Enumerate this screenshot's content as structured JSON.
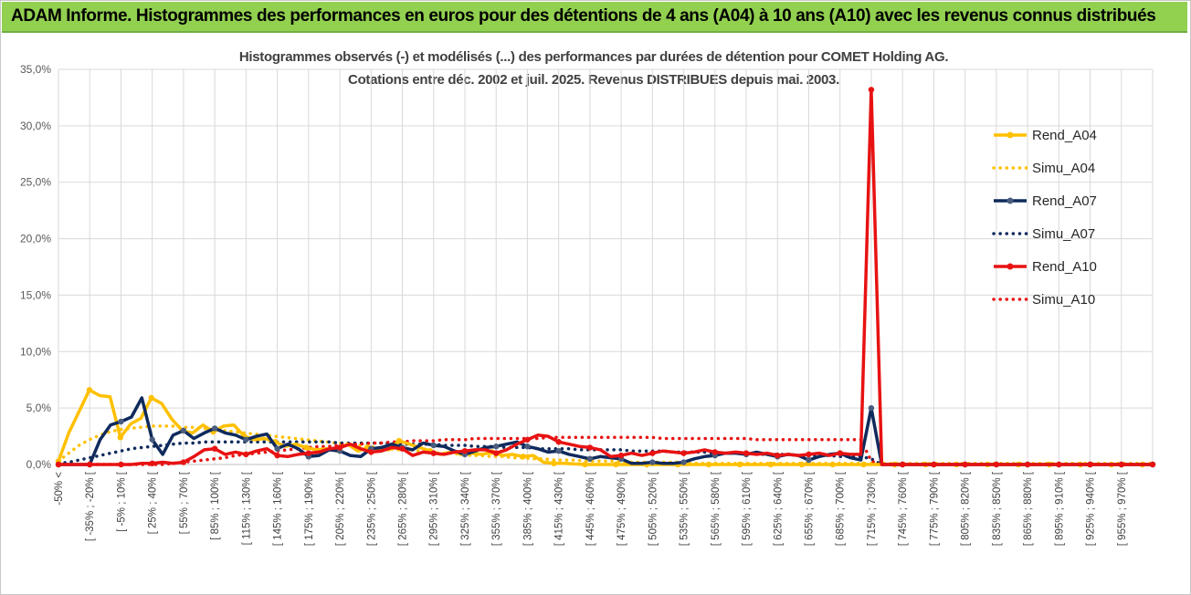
{
  "banner": {
    "title": "ADAM Informe. Histogrammes des performances en euros pour des détentions de 4 ans (A04) à 10 ans (A10) avec les revenus connus distribués"
  },
  "chart_data": {
    "type": "line",
    "title": "Histogrammes observés (-) et modélisés (...) des performances par durées de détention pour COMET Holding AG.",
    "subtitle": "Cotations entre déc. 2002 et juil. 2025. Revenus DISTRIBUES depuis mai. 2003.",
    "xlabel": "",
    "ylabel": "",
    "ylim": [
      0,
      35
    ],
    "y_ticks": [
      "0,0%",
      "5,0%",
      "10,0%",
      "15,0%",
      "20,0%",
      "25,0%",
      "30,0%",
      "35,0%"
    ],
    "x_count": 36,
    "x_tick_labels": [
      "-50% <",
      "[ -35% ; -20% [",
      "[ -5% ; 10% [",
      "[ 25% ; 40% [",
      "[ 55% ; 70% [",
      "[ 85% ; 100% [",
      "[ 115% ; 130% [",
      "[ 145% ; 160% [",
      "[ 175% ; 190% [",
      "[ 205% ; 220% [",
      "[ 235% ; 250% [",
      "[ 265% ; 280% [",
      "[ 295% ; 310% [",
      "[ 325% ; 340% [",
      "[ 355% ; 370% [",
      "[ 385% ; 400% [",
      "[ 415% ; 430% [",
      "[ 445% ; 460% [",
      "[ 475% ; 490% [",
      "[ 505% ; 520% [",
      "[ 535% ; 550% [",
      "[ 565% ; 580% [",
      "[ 595% ; 610% [",
      "[ 625% ; 640% [",
      "[ 655% ; 670% [",
      "[ 685% ; 700% [",
      "[ 715% ; 730% [",
      "[ 745% ; 760% [",
      "[ 775% ; 790% [",
      "[ 805% ; 820% [",
      "[ 835% ; 850% [",
      "[ 865% ; 880% [",
      "[ 895% ; 910% [",
      "[ 925% ; 940% [",
      "[ 955% ; 970% [",
      ""
    ],
    "grid": true,
    "legend_position": "right",
    "series": [
      {
        "name": "Rend_A04",
        "style": "solid",
        "color": "#ffc000",
        "values": [
          0.3,
          2.8,
          4.7,
          6.6,
          6.1,
          6.0,
          2.4,
          3.6,
          4.1,
          5.9,
          5.4,
          4.0,
          3.0,
          2.8,
          3.5,
          2.9,
          3.4,
          3.5,
          2.5,
          2.2,
          2.3,
          2.0,
          1.6,
          1.8,
          1.5,
          1.3,
          1.4,
          1.3,
          1.8,
          1.2,
          1.5,
          1.4,
          1.3,
          2.1,
          1.8,
          1.5,
          1.2,
          0.9,
          1.1,
          1.0,
          1.0,
          0.9,
          1.1,
          0.8,
          0.9,
          0.7,
          0.8,
          0.2,
          0.1,
          0.1,
          0.05,
          0.0,
          0.0,
          0.0,
          0.0,
          0.0,
          0.0,
          0.0,
          0.0,
          0.0,
          0.0,
          0.0,
          0.0,
          0.0,
          0.0,
          0.0,
          0.0,
          0.0,
          0.0,
          0.0,
          0.0,
          0.0,
          0.0,
          0.0,
          0.0,
          0.0,
          0.0,
          0.0,
          0.0,
          0.0,
          0.0,
          0.0,
          0.0,
          0.0,
          0.0,
          0.0,
          0.0,
          0.0,
          0.0,
          0.0,
          0.0,
          0.0,
          0.0,
          0.0,
          0.0,
          0.0,
          0.0,
          0.0,
          0.0,
          0.0,
          0.0,
          0.0,
          0.0,
          0.0,
          0.0,
          0.0,
          0.0
        ]
      },
      {
        "name": "Simu_A04",
        "style": "dotted",
        "color": "#ffc000",
        "values": [
          0.3,
          1.0,
          1.7,
          2.2,
          2.6,
          2.9,
          3.1,
          3.2,
          3.3,
          3.4,
          3.4,
          3.4,
          3.3,
          3.3,
          3.2,
          3.1,
          3.0,
          2.9,
          2.8,
          2.7,
          2.6,
          2.5,
          2.4,
          2.3,
          2.2,
          2.1,
          2.0,
          1.9,
          1.8,
          1.7,
          1.6,
          1.5,
          1.4,
          1.3,
          1.3,
          1.2,
          1.1,
          1.0,
          1.0,
          0.9,
          0.8,
          0.8,
          0.7,
          0.7,
          0.6,
          0.6,
          0.5,
          0.5,
          0.4,
          0.4,
          0.4,
          0.3,
          0.3,
          0.3,
          0.3,
          0.2,
          0.2,
          0.2,
          0.2,
          0.2,
          0.2,
          0.1,
          0.1,
          0.1,
          0.1,
          0.1,
          0.1,
          0.1,
          0.1,
          0.1,
          0.1,
          0.1,
          0.1,
          0.1,
          0.1,
          0.1,
          0.1,
          0.1,
          0.1,
          0.1,
          0.1,
          0.1,
          0.1,
          0.1,
          0.1,
          0.1,
          0.1,
          0.1,
          0.1,
          0.1,
          0.1,
          0.1,
          0.1,
          0.1,
          0.1,
          0.1,
          0.1,
          0.1,
          0.1,
          0.1,
          0.1,
          0.1,
          0.1,
          0.1,
          0.1,
          0.1,
          0.1
        ]
      },
      {
        "name": "Rend_A07",
        "style": "solid",
        "color": "#0f2a5c",
        "values": [
          0.0,
          0.0,
          0.0,
          0.0,
          2.2,
          3.5,
          3.8,
          4.2,
          5.9,
          2.2,
          0.9,
          2.6,
          3.0,
          2.3,
          2.8,
          3.2,
          2.8,
          2.6,
          2.2,
          2.5,
          2.7,
          1.4,
          1.8,
          1.4,
          0.7,
          0.8,
          1.3,
          1.2,
          0.8,
          0.7,
          1.4,
          1.5,
          1.8,
          1.5,
          1.3,
          1.9,
          1.7,
          1.6,
          1.2,
          0.9,
          1.2,
          1.5,
          1.6,
          1.8,
          2.0,
          1.6,
          1.4,
          1.1,
          1.2,
          0.9,
          0.7,
          0.5,
          0.7,
          0.6,
          0.5,
          0.1,
          0.1,
          0.2,
          0.1,
          0.1,
          0.2,
          0.5,
          0.7,
          0.8,
          1.0,
          1.0,
          0.9,
          1.1,
          0.9,
          0.7,
          0.9,
          0.8,
          0.4,
          0.7,
          0.9,
          1.0,
          0.6,
          0.4,
          5.0,
          0.0,
          0.0,
          0.0,
          0.0,
          0.0,
          0.0,
          0.0,
          0.0,
          0.0,
          0.0,
          0.0,
          0.0,
          0.0,
          0.0,
          0.0,
          0.0,
          0.0,
          0.0,
          0.0,
          0.0,
          0.0,
          0.0,
          0.0,
          0.0,
          0.0,
          0.0,
          0.0
        ]
      },
      {
        "name": "Simu_A07",
        "style": "dotted",
        "color": "#0f2a5c",
        "values": [
          0.1,
          0.2,
          0.4,
          0.6,
          0.8,
          1.0,
          1.2,
          1.4,
          1.5,
          1.6,
          1.7,
          1.8,
          1.9,
          1.9,
          2.0,
          2.0,
          2.0,
          2.0,
          2.0,
          2.0,
          2.0,
          2.0,
          2.0,
          2.0,
          2.0,
          2.0,
          2.0,
          1.9,
          1.9,
          1.9,
          1.9,
          1.9,
          1.9,
          1.8,
          1.8,
          1.8,
          1.8,
          1.7,
          1.7,
          1.7,
          1.6,
          1.6,
          1.6,
          1.5,
          1.5,
          1.5,
          1.4,
          1.4,
          1.4,
          1.4,
          1.3,
          1.3,
          1.3,
          1.3,
          1.3,
          1.2,
          1.2,
          1.2,
          1.2,
          1.1,
          1.1,
          1.1,
          1.1,
          1.0,
          1.0,
          1.0,
          1.0,
          0.9,
          0.9,
          0.9,
          0.9,
          0.8,
          0.8,
          0.8,
          0.8,
          0.7,
          0.7,
          0.7,
          0.5,
          0.0,
          0.0,
          0.0,
          0.0,
          0.0,
          0.0,
          0.0,
          0.0,
          0.0,
          0.0,
          0.0,
          0.0,
          0.0,
          0.0,
          0.0,
          0.0,
          0.0,
          0.0,
          0.0,
          0.0,
          0.0,
          0.0,
          0.0,
          0.0,
          0.0,
          0.0,
          0.0
        ]
      },
      {
        "name": "Rend_A10",
        "style": "solid",
        "color": "#e81212",
        "values": [
          0.0,
          0.0,
          0.0,
          0.0,
          0.0,
          0.0,
          0.0,
          0.0,
          0.1,
          0.1,
          0.2,
          0.1,
          0.2,
          0.7,
          1.3,
          1.4,
          0.9,
          1.1,
          0.9,
          1.2,
          1.4,
          0.8,
          0.7,
          0.9,
          1.0,
          1.1,
          1.4,
          1.5,
          1.8,
          1.4,
          1.1,
          1.2,
          1.5,
          1.4,
          0.8,
          1.1,
          1.0,
          0.9,
          1.1,
          1.2,
          1.3,
          1.3,
          1.0,
          1.3,
          1.8,
          2.2,
          2.6,
          2.5,
          2.0,
          1.8,
          1.6,
          1.5,
          1.3,
          0.7,
          0.8,
          1.0,
          0.8,
          1.0,
          1.2,
          1.1,
          1.0,
          1.1,
          1.3,
          1.1,
          1.0,
          1.1,
          1.0,
          0.9,
          1.0,
          0.8,
          0.9,
          0.8,
          0.9,
          1.0,
          0.8,
          1.0,
          0.9,
          0.9,
          33.2,
          0.0,
          0.0,
          0.0,
          0.0,
          0.0,
          0.0,
          0.0,
          0.0,
          0.0,
          0.0,
          0.0,
          0.0,
          0.0,
          0.0,
          0.0,
          0.0,
          0.0,
          0.0,
          0.0,
          0.0,
          0.0,
          0.0,
          0.0,
          0.0,
          0.0,
          0.0,
          0.0
        ]
      },
      {
        "name": "Simu_A10",
        "style": "dotted",
        "color": "#e81212",
        "values": [
          0.0,
          0.0,
          0.0,
          0.0,
          0.0,
          0.0,
          0.0,
          0.0,
          0.0,
          0.0,
          0.0,
          0.1,
          0.2,
          0.3,
          0.4,
          0.5,
          0.6,
          0.8,
          0.9,
          1.0,
          1.1,
          1.2,
          1.3,
          1.4,
          1.5,
          1.6,
          1.6,
          1.7,
          1.8,
          1.8,
          1.9,
          1.9,
          2.0,
          2.0,
          2.1,
          2.1,
          2.1,
          2.2,
          2.2,
          2.2,
          2.3,
          2.3,
          2.3,
          2.3,
          2.3,
          2.3,
          2.3,
          2.4,
          2.4,
          2.4,
          2.4,
          2.4,
          2.4,
          2.4,
          2.4,
          2.4,
          2.4,
          2.4,
          2.3,
          2.3,
          2.3,
          2.3,
          2.3,
          2.3,
          2.3,
          2.3,
          2.3,
          2.2,
          2.2,
          2.2,
          2.2,
          2.2,
          2.2,
          2.2,
          2.2,
          2.2,
          2.2,
          2.2,
          0.3,
          0.0,
          0.0,
          0.0,
          0.0,
          0.0,
          0.0,
          0.0,
          0.0,
          0.0,
          0.0,
          0.0,
          0.0,
          0.0,
          0.0,
          0.0,
          0.0,
          0.0,
          0.0,
          0.0,
          0.0,
          0.0,
          0.0,
          0.0,
          0.0,
          0.0,
          0.0,
          0.0
        ]
      }
    ]
  }
}
